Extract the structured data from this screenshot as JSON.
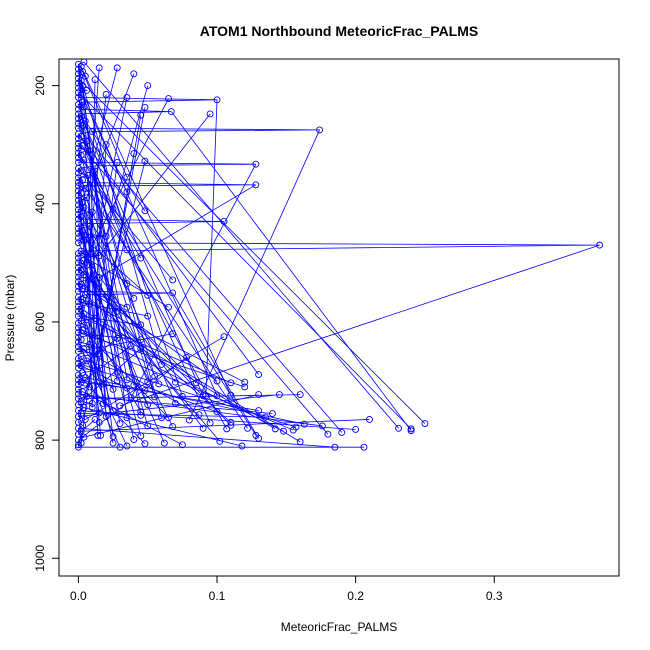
{
  "chart_data": {
    "type": "scatter",
    "title": "ATOM1 Northbound MeteoricFrac_PALMS",
    "xlabel": "MeteoricFrac_PALMS",
    "ylabel": "Pressure (mbar)",
    "xlim": [
      -0.014,
      0.39
    ],
    "ylim": [
      1030,
      155
    ],
    "y_reversed": true,
    "x_ticks": [
      0.0,
      0.1,
      0.2,
      0.3
    ],
    "x_tick_labels": [
      "0.0",
      "0.1",
      "0.2",
      "0.3"
    ],
    "y_ticks": [
      200,
      400,
      600,
      800,
      1000
    ],
    "y_tick_labels": [
      "200",
      "400",
      "600",
      "800",
      "1000"
    ],
    "grid": false,
    "series": [
      {
        "color": "#0000ff",
        "marker": "open-circle",
        "line": true,
        "points": [
          [
            0.0,
            812
          ],
          [
            0.0,
            808
          ],
          [
            0.002,
            805
          ],
          [
            0.0,
            800
          ],
          [
            0.004,
            795
          ],
          [
            0.0,
            790
          ],
          [
            0.002,
            785
          ],
          [
            0.0,
            780
          ],
          [
            0.003,
            775
          ],
          [
            0.0,
            770
          ],
          [
            0.005,
            765
          ],
          [
            0.0,
            760
          ],
          [
            0.002,
            755
          ],
          [
            0.0,
            750
          ],
          [
            0.004,
            745
          ],
          [
            0.0,
            740
          ],
          [
            0.01,
            738
          ],
          [
            0.002,
            735
          ],
          [
            0.0,
            730
          ],
          [
            0.006,
            726
          ],
          [
            0.0,
            722
          ],
          [
            0.003,
            718
          ],
          [
            0.0,
            714
          ],
          [
            0.008,
            710
          ],
          [
            0.0,
            706
          ],
          [
            0.002,
            702
          ],
          [
            0.0,
            698
          ],
          [
            0.005,
            694
          ],
          [
            0.0,
            690
          ],
          [
            0.003,
            686
          ],
          [
            0.012,
            682
          ],
          [
            0.0,
            678
          ],
          [
            0.002,
            674
          ],
          [
            0.0,
            670
          ],
          [
            0.006,
            666
          ],
          [
            0.0,
            662
          ],
          [
            0.002,
            658
          ],
          [
            0.015,
            654
          ],
          [
            0.0,
            650
          ],
          [
            0.004,
            646
          ],
          [
            0.0,
            642
          ],
          [
            0.008,
            638
          ],
          [
            0.0,
            634
          ],
          [
            0.002,
            630
          ],
          [
            0.0,
            626
          ],
          [
            0.01,
            622
          ],
          [
            0.0,
            618
          ],
          [
            0.003,
            614
          ],
          [
            0.0,
            610
          ],
          [
            0.006,
            606
          ],
          [
            0.0,
            602
          ],
          [
            0.002,
            598
          ],
          [
            0.012,
            594
          ],
          [
            0.0,
            590
          ],
          [
            0.004,
            586
          ],
          [
            0.0,
            582
          ],
          [
            0.002,
            578
          ],
          [
            0.0,
            574
          ],
          [
            0.008,
            570
          ],
          [
            0.0,
            566
          ],
          [
            0.003,
            562
          ],
          [
            0.0,
            558
          ],
          [
            0.005,
            554
          ],
          [
            0.068,
            551
          ],
          [
            0.0,
            548
          ],
          [
            0.003,
            544
          ],
          [
            0.0,
            540
          ],
          [
            0.002,
            536
          ],
          [
            0.0,
            532
          ],
          [
            0.01,
            528
          ],
          [
            0.0,
            524
          ],
          [
            0.004,
            520
          ],
          [
            0.0,
            516
          ],
          [
            0.002,
            512
          ],
          [
            0.0,
            508
          ],
          [
            0.006,
            504
          ],
          [
            0.0,
            500
          ],
          [
            0.003,
            496
          ],
          [
            0.0,
            492
          ],
          [
            0.015,
            488
          ],
          [
            0.0,
            484
          ],
          [
            0.002,
            480
          ],
          [
            0.376,
            470
          ],
          [
            0.0,
            466
          ],
          [
            0.004,
            462
          ],
          [
            0.0,
            458
          ],
          [
            0.02,
            455
          ],
          [
            0.0,
            450
          ],
          [
            0.003,
            446
          ],
          [
            0.0,
            442
          ],
          [
            0.008,
            438
          ],
          [
            0.0,
            434
          ],
          [
            0.105,
            430
          ],
          [
            0.0,
            426
          ],
          [
            0.002,
            422
          ],
          [
            0.0,
            418
          ],
          [
            0.01,
            414
          ],
          [
            0.0,
            410
          ],
          [
            0.004,
            406
          ],
          [
            0.0,
            402
          ],
          [
            0.003,
            398
          ],
          [
            0.0,
            394
          ],
          [
            0.006,
            390
          ],
          [
            0.0,
            386
          ],
          [
            0.002,
            382
          ],
          [
            0.0,
            378
          ],
          [
            0.005,
            374
          ],
          [
            0.0,
            370
          ],
          [
            0.128,
            368
          ],
          [
            0.0,
            364
          ],
          [
            0.003,
            360
          ],
          [
            0.0,
            356
          ],
          [
            0.007,
            352
          ],
          [
            0.0,
            348
          ],
          [
            0.002,
            344
          ],
          [
            0.0,
            340
          ],
          [
            0.012,
            336
          ],
          [
            0.128,
            333
          ],
          [
            0.0,
            330
          ],
          [
            0.004,
            326
          ],
          [
            0.0,
            322
          ],
          [
            0.002,
            318
          ],
          [
            0.0,
            314
          ],
          [
            0.008,
            310
          ],
          [
            0.0,
            306
          ],
          [
            0.003,
            302
          ],
          [
            0.0,
            298
          ],
          [
            0.006,
            294
          ],
          [
            0.0,
            290
          ],
          [
            0.002,
            286
          ],
          [
            0.0,
            282
          ],
          [
            0.01,
            278
          ],
          [
            0.174,
            275
          ],
          [
            0.0,
            272
          ],
          [
            0.003,
            268
          ],
          [
            0.0,
            264
          ],
          [
            0.005,
            260
          ],
          [
            0.0,
            256
          ],
          [
            0.002,
            252
          ],
          [
            0.0,
            248
          ],
          [
            0.067,
            244
          ],
          [
            0.0,
            240
          ],
          [
            0.004,
            236
          ],
          [
            0.0,
            232
          ],
          [
            0.003,
            228
          ],
          [
            0.1,
            224
          ],
          [
            0.0,
            220
          ],
          [
            0.002,
            216
          ],
          [
            0.0,
            212
          ],
          [
            0.006,
            208
          ],
          [
            0.0,
            204
          ],
          [
            0.003,
            200
          ],
          [
            0.0,
            196
          ],
          [
            0.002,
            192
          ],
          [
            0.0,
            188
          ],
          [
            0.005,
            184
          ],
          [
            0.0,
            180
          ],
          [
            0.003,
            176
          ],
          [
            0.0,
            172
          ],
          [
            0.002,
            168
          ],
          [
            0.0,
            164
          ],
          [
            0.004,
            160
          ]
        ]
      }
    ],
    "cluster_points": [
      [
        0.206,
        812
      ],
      [
        0.185,
        812
      ],
      [
        0.118,
        810
      ],
      [
        0.075,
        808
      ],
      [
        0.048,
        806
      ],
      [
        0.03,
        812
      ],
      [
        0.035,
        810
      ],
      [
        0.025,
        805
      ],
      [
        0.16,
        803
      ],
      [
        0.13,
        797
      ],
      [
        0.102,
        802
      ],
      [
        0.062,
        805
      ],
      [
        0.04,
        799
      ],
      [
        0.045,
        793
      ],
      [
        0.025,
        794
      ],
      [
        0.016,
        792
      ],
      [
        0.014,
        792
      ],
      [
        0.128,
        792
      ],
      [
        0.18,
        790
      ],
      [
        0.19,
        787
      ],
      [
        0.24,
        784
      ],
      [
        0.24,
        781
      ],
      [
        0.25,
        772
      ],
      [
        0.231,
        780
      ],
      [
        0.21,
        765
      ],
      [
        0.2,
        782
      ],
      [
        0.176,
        776
      ],
      [
        0.163,
        773
      ],
      [
        0.157,
        778
      ],
      [
        0.155,
        783
      ],
      [
        0.148,
        785
      ],
      [
        0.142,
        781
      ],
      [
        0.11,
        770
      ],
      [
        0.11,
        775
      ],
      [
        0.09,
        780
      ],
      [
        0.068,
        777
      ],
      [
        0.05,
        776
      ],
      [
        0.03,
        772
      ],
      [
        0.015,
        770
      ],
      [
        0.122,
        780
      ],
      [
        0.107,
        781
      ],
      [
        0.095,
        771
      ],
      [
        0.08,
        766
      ],
      [
        0.06,
        762
      ],
      [
        0.045,
        758
      ],
      [
        0.035,
        762
      ],
      [
        0.02,
        760
      ],
      [
        0.012,
        765
      ],
      [
        0.135,
        761
      ],
      [
        0.14,
        755
      ],
      [
        0.13,
        750
      ],
      [
        0.1,
        752
      ],
      [
        0.087,
        757
      ],
      [
        0.065,
        762
      ],
      [
        0.045,
        752
      ],
      [
        0.025,
        750
      ],
      [
        0.015,
        754
      ],
      [
        0.01,
        745
      ],
      [
        0.03,
        742
      ],
      [
        0.05,
        740
      ],
      [
        0.07,
        738
      ],
      [
        0.018,
        738
      ],
      [
        0.02,
        736
      ],
      [
        0.038,
        728
      ],
      [
        0.055,
        727
      ],
      [
        0.075,
        726
      ],
      [
        0.09,
        725
      ],
      [
        0.092,
        725
      ],
      [
        0.1,
        725
      ],
      [
        0.11,
        724
      ],
      [
        0.13,
        723
      ],
      [
        0.145,
        723
      ],
      [
        0.16,
        723
      ],
      [
        0.048,
        716
      ],
      [
        0.035,
        712
      ],
      [
        0.025,
        714
      ],
      [
        0.12,
        710
      ],
      [
        0.11,
        703
      ],
      [
        0.12,
        702
      ],
      [
        0.1,
        700
      ],
      [
        0.085,
        703
      ],
      [
        0.07,
        702
      ],
      [
        0.058,
        705
      ],
      [
        0.05,
        701
      ],
      [
        0.04,
        707
      ],
      [
        0.028,
        700
      ],
      [
        0.018,
        705
      ],
      [
        0.015,
        701
      ],
      [
        0.13,
        689
      ],
      [
        0.055,
        692
      ],
      [
        0.035,
        698
      ],
      [
        0.028,
        685
      ],
      [
        0.06,
        672
      ],
      [
        0.078,
        660
      ],
      [
        0.105,
        625
      ],
      [
        0.045,
        645
      ],
      [
        0.038,
        640
      ],
      [
        0.028,
        628
      ],
      [
        0.068,
        620
      ],
      [
        0.045,
        630
      ],
      [
        0.045,
        605
      ],
      [
        0.05,
        590
      ],
      [
        0.035,
        575
      ],
      [
        0.028,
        582
      ],
      [
        0.065,
        575
      ],
      [
        0.05,
        555
      ],
      [
        0.04,
        560
      ],
      [
        0.035,
        535
      ],
      [
        0.015,
        525
      ],
      [
        0.068,
        529
      ],
      [
        0.045,
        492
      ],
      [
        0.035,
        478
      ],
      [
        0.048,
        412
      ],
      [
        0.025,
        409
      ],
      [
        0.035,
        380
      ],
      [
        0.035,
        355
      ],
      [
        0.028,
        330
      ],
      [
        0.048,
        328
      ],
      [
        0.04,
        315
      ],
      [
        0.02,
        300
      ],
      [
        0.048,
        237
      ],
      [
        0.045,
        250
      ],
      [
        0.035,
        220
      ],
      [
        0.02,
        215
      ],
      [
        0.012,
        190
      ],
      [
        0.015,
        170
      ],
      [
        0.065,
        222
      ],
      [
        0.095,
        248
      ],
      [
        0.05,
        200
      ],
      [
        0.04,
        180
      ],
      [
        0.028,
        170
      ]
    ]
  }
}
